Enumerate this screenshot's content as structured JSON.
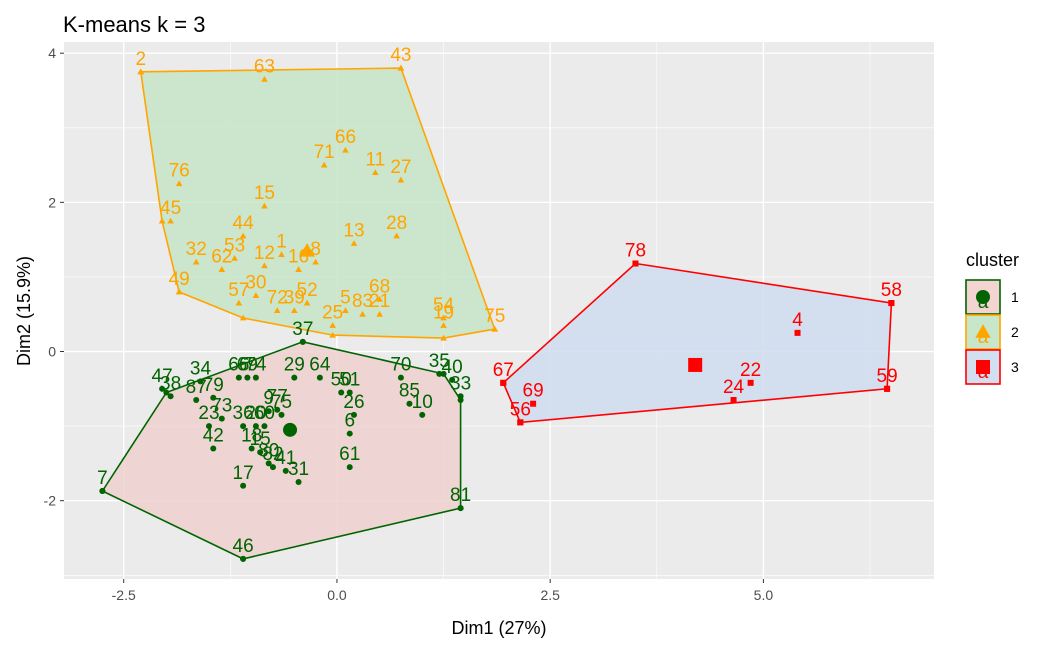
{
  "chart_data": {
    "type": "scatter",
    "title": "K-means k = 3",
    "xlabel": "Dim1 (27%)",
    "ylabel": "Dim2 (15.9%)",
    "xlim": [
      -3.2,
      7.0
    ],
    "ylim": [
      -3.05,
      4.15
    ],
    "x_ticks": [
      -2.5,
      0.0,
      2.5,
      5.0
    ],
    "x_tick_labels": [
      "-2.5",
      "0.0",
      "2.5",
      "5.0"
    ],
    "y_ticks": [
      -2,
      0,
      2,
      4
    ],
    "y_tick_labels": [
      "-2",
      "0",
      "2",
      "4"
    ],
    "grid": true,
    "legend": {
      "title": "cluster",
      "position": "right",
      "entries": [
        {
          "label": "1",
          "shape": "circle",
          "color": "#006400",
          "fill": "#f4d4d2",
          "glyph": "a"
        },
        {
          "label": "2",
          "shape": "triangle",
          "color": "#FFA500",
          "fill": "#c8e6c9",
          "glyph": "a"
        },
        {
          "label": "3",
          "shape": "square",
          "color": "#FF0000",
          "fill": "#d2dff0",
          "glyph": "a"
        }
      ]
    },
    "series": [
      {
        "name": "1",
        "color": "#006400",
        "fill": "#f0d0d0",
        "shape": "circle",
        "centroid": [
          -0.55,
          -1.05
        ],
        "hull": [
          [
            -2.75,
            -1.87
          ],
          [
            -2.0,
            -0.55
          ],
          [
            -0.4,
            0.13
          ],
          [
            1.25,
            -0.3
          ],
          [
            1.45,
            -0.65
          ],
          [
            1.45,
            -2.1
          ],
          [
            -1.1,
            -2.78
          ]
        ],
        "points": [
          {
            "id": "37",
            "x": -0.4,
            "y": 0.13
          },
          {
            "id": "66",
            "x": -1.15,
            "y": -0.35
          },
          {
            "id": "69",
            "x": -1.05,
            "y": -0.35
          },
          {
            "id": "74",
            "x": -0.95,
            "y": -0.35
          },
          {
            "id": "29",
            "x": -0.5,
            "y": -0.35
          },
          {
            "id": "64",
            "x": -0.2,
            "y": -0.35
          },
          {
            "id": "34",
            "x": -1.6,
            "y": -0.4
          },
          {
            "id": "47",
            "x": -2.05,
            "y": -0.5
          },
          {
            "id": "38",
            "x": -1.95,
            "y": -0.6
          },
          {
            "id": "87",
            "x": -1.65,
            "y": -0.65
          },
          {
            "id": "79",
            "x": -1.45,
            "y": -0.62
          },
          {
            "id": "70",
            "x": 0.75,
            "y": -0.35
          },
          {
            "id": "35",
            "x": 1.2,
            "y": -0.3
          },
          {
            "id": "40",
            "x": 1.35,
            "y": -0.38
          },
          {
            "id": "33",
            "x": 1.45,
            "y": -0.6
          },
          {
            "id": "85",
            "x": 0.85,
            "y": -0.7
          },
          {
            "id": "10",
            "x": 1.0,
            "y": -0.85
          },
          {
            "id": "50",
            "x": 0.05,
            "y": -0.55
          },
          {
            "id": "51",
            "x": 0.15,
            "y": -0.55
          },
          {
            "id": "9",
            "x": -0.8,
            "y": -0.8
          },
          {
            "id": "77",
            "x": -0.7,
            "y": -0.78
          },
          {
            "id": "75",
            "x": -0.65,
            "y": -0.85
          },
          {
            "id": "73",
            "x": -1.35,
            "y": -0.9
          },
          {
            "id": "23",
            "x": -1.5,
            "y": -1.0
          },
          {
            "id": "26",
            "x": 0.2,
            "y": -0.85
          },
          {
            "id": "36",
            "x": -1.1,
            "y": -1.0
          },
          {
            "id": "20",
            "x": -0.95,
            "y": -1.0
          },
          {
            "id": "60",
            "x": -0.85,
            "y": -1.0
          },
          {
            "id": "6",
            "x": 0.15,
            "y": -1.1
          },
          {
            "id": "42",
            "x": -1.45,
            "y": -1.3
          },
          {
            "id": "18",
            "x": -1.0,
            "y": -1.3
          },
          {
            "id": "15",
            "x": -0.9,
            "y": -1.35
          },
          {
            "id": "80",
            "x": -0.8,
            "y": -1.5
          },
          {
            "id": "82",
            "x": -0.75,
            "y": -1.55
          },
          {
            "id": "41",
            "x": -0.6,
            "y": -1.6
          },
          {
            "id": "61",
            "x": 0.15,
            "y": -1.55
          },
          {
            "id": "31",
            "x": -0.45,
            "y": -1.75
          },
          {
            "id": "17",
            "x": -1.1,
            "y": -1.8
          },
          {
            "id": "81",
            "x": 1.45,
            "y": -2.1
          },
          {
            "id": "46",
            "x": -1.1,
            "y": -2.78
          },
          {
            "id": "7",
            "x": -2.75,
            "y": -1.87
          }
        ]
      },
      {
        "name": "2",
        "color": "#FFA500",
        "fill": "#c5e5c8",
        "shape": "triangle",
        "centroid": [
          -0.35,
          1.35
        ],
        "hull": [
          [
            -2.3,
            3.75
          ],
          [
            0.75,
            3.8
          ],
          [
            1.85,
            0.3
          ],
          [
            1.25,
            0.18
          ],
          [
            -0.05,
            0.22
          ],
          [
            -1.1,
            0.45
          ],
          [
            -1.85,
            0.8
          ],
          [
            -2.05,
            1.75
          ]
        ],
        "points": [
          {
            "id": "2",
            "x": -2.3,
            "y": 3.75
          },
          {
            "id": "63",
            "x": -0.85,
            "y": 3.65
          },
          {
            "id": "43",
            "x": 0.75,
            "y": 3.8
          },
          {
            "id": "66",
            "x": 0.1,
            "y": 2.7
          },
          {
            "id": "71",
            "x": -0.15,
            "y": 2.5
          },
          {
            "id": "11",
            "x": 0.45,
            "y": 2.4
          },
          {
            "id": "27",
            "x": 0.75,
            "y": 2.3
          },
          {
            "id": "76",
            "x": -1.85,
            "y": 2.25
          },
          {
            "id": "15",
            "x": -0.85,
            "y": 1.95
          },
          {
            "id": "45",
            "x": -1.95,
            "y": 1.75
          },
          {
            "id": "28",
            "x": 0.7,
            "y": 1.55
          },
          {
            "id": "13",
            "x": 0.2,
            "y": 1.45
          },
          {
            "id": "44",
            "x": -1.1,
            "y": 1.55
          },
          {
            "id": "32",
            "x": -1.65,
            "y": 1.2
          },
          {
            "id": "62",
            "x": -1.35,
            "y": 1.1
          },
          {
            "id": "53",
            "x": -1.2,
            "y": 1.25
          },
          {
            "id": "12",
            "x": -0.85,
            "y": 1.15
          },
          {
            "id": "1",
            "x": -0.65,
            "y": 1.3
          },
          {
            "id": "16",
            "x": -0.45,
            "y": 1.1
          },
          {
            "id": "8",
            "x": -0.25,
            "y": 1.2
          },
          {
            "id": "49",
            "x": -1.85,
            "y": 0.8
          },
          {
            "id": "30",
            "x": -0.95,
            "y": 0.75
          },
          {
            "id": "57",
            "x": -1.15,
            "y": 0.65
          },
          {
            "id": "68",
            "x": 0.5,
            "y": 0.7
          },
          {
            "id": "52",
            "x": -0.35,
            "y": 0.65
          },
          {
            "id": "72",
            "x": -0.7,
            "y": 0.55
          },
          {
            "id": "39",
            "x": -0.5,
            "y": 0.55
          },
          {
            "id": "5",
            "x": 0.1,
            "y": 0.55
          },
          {
            "id": "83",
            "x": 0.3,
            "y": 0.5
          },
          {
            "id": "21",
            "x": 0.5,
            "y": 0.5
          },
          {
            "id": "25",
            "x": -0.05,
            "y": 0.35
          },
          {
            "id": "54",
            "x": 1.25,
            "y": 0.45
          },
          {
            "id": "19",
            "x": 1.25,
            "y": 0.35
          },
          {
            "id": "75",
            "x": 1.85,
            "y": 0.3
          }
        ]
      },
      {
        "name": "3",
        "color": "#FF0000",
        "fill": "#cfdcf0",
        "shape": "square",
        "centroid": [
          4.2,
          -0.18
        ],
        "hull": [
          [
            3.5,
            1.18
          ],
          [
            6.5,
            0.65
          ],
          [
            6.45,
            -0.5
          ],
          [
            2.15,
            -0.95
          ],
          [
            1.95,
            -0.42
          ]
        ],
        "points": [
          {
            "id": "78",
            "x": 3.5,
            "y": 1.18
          },
          {
            "id": "58",
            "x": 6.5,
            "y": 0.65
          },
          {
            "id": "4",
            "x": 5.4,
            "y": 0.25
          },
          {
            "id": "22",
            "x": 4.85,
            "y": -0.42
          },
          {
            "id": "24",
            "x": 4.65,
            "y": -0.65
          },
          {
            "id": "59",
            "x": 6.45,
            "y": -0.5
          },
          {
            "id": "67",
            "x": 1.95,
            "y": -0.42
          },
          {
            "id": "69",
            "x": 2.3,
            "y": -0.7
          },
          {
            "id": "56",
            "x": 2.15,
            "y": -0.95
          }
        ]
      }
    ]
  }
}
